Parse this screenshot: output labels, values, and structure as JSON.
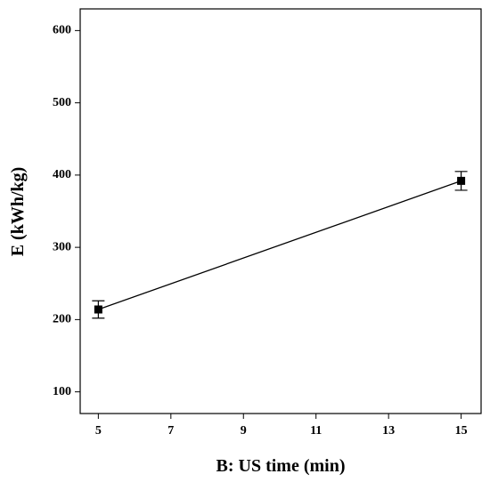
{
  "chart_data": {
    "type": "line",
    "xlabel": "B: US time (min)",
    "ylabel": "E (kWh/kg)",
    "x": [
      5,
      15
    ],
    "values": [
      214,
      392
    ],
    "errors": [
      12,
      13
    ],
    "color": "#000000",
    "xlim": [
      4.5,
      15.55
    ],
    "xticks": [
      5,
      7,
      9,
      11,
      13,
      15
    ],
    "ylim": [
      70,
      630
    ],
    "yticks": [
      100,
      200,
      300,
      400,
      500,
      600
    ]
  }
}
